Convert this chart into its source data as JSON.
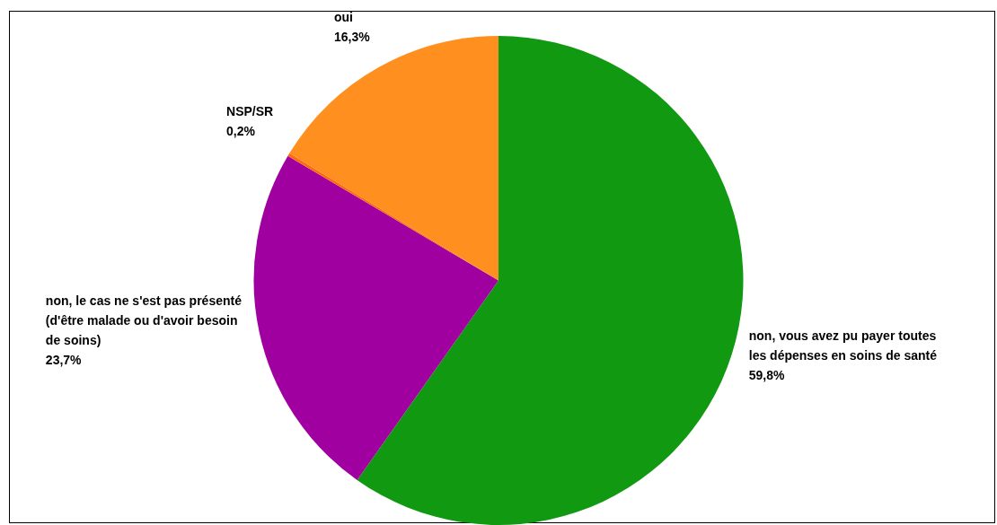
{
  "chart_data": {
    "type": "pie",
    "categories": [
      "non, vous avez pu payer toutes les dépenses en soins de santé",
      "non, le cas ne s'est pas présenté (d'être malade ou d'avoir besoin de soins)",
      "NSP/SR",
      "oui"
    ],
    "values": [
      59.8,
      23.7,
      0.2,
      16.3
    ],
    "value_labels": [
      "59,8%",
      "23,7%",
      "0,2%",
      "16,3%"
    ],
    "colors": [
      "#119911",
      "#a000a0",
      "#ff6a10",
      "#ff9020"
    ],
    "legend": false
  }
}
